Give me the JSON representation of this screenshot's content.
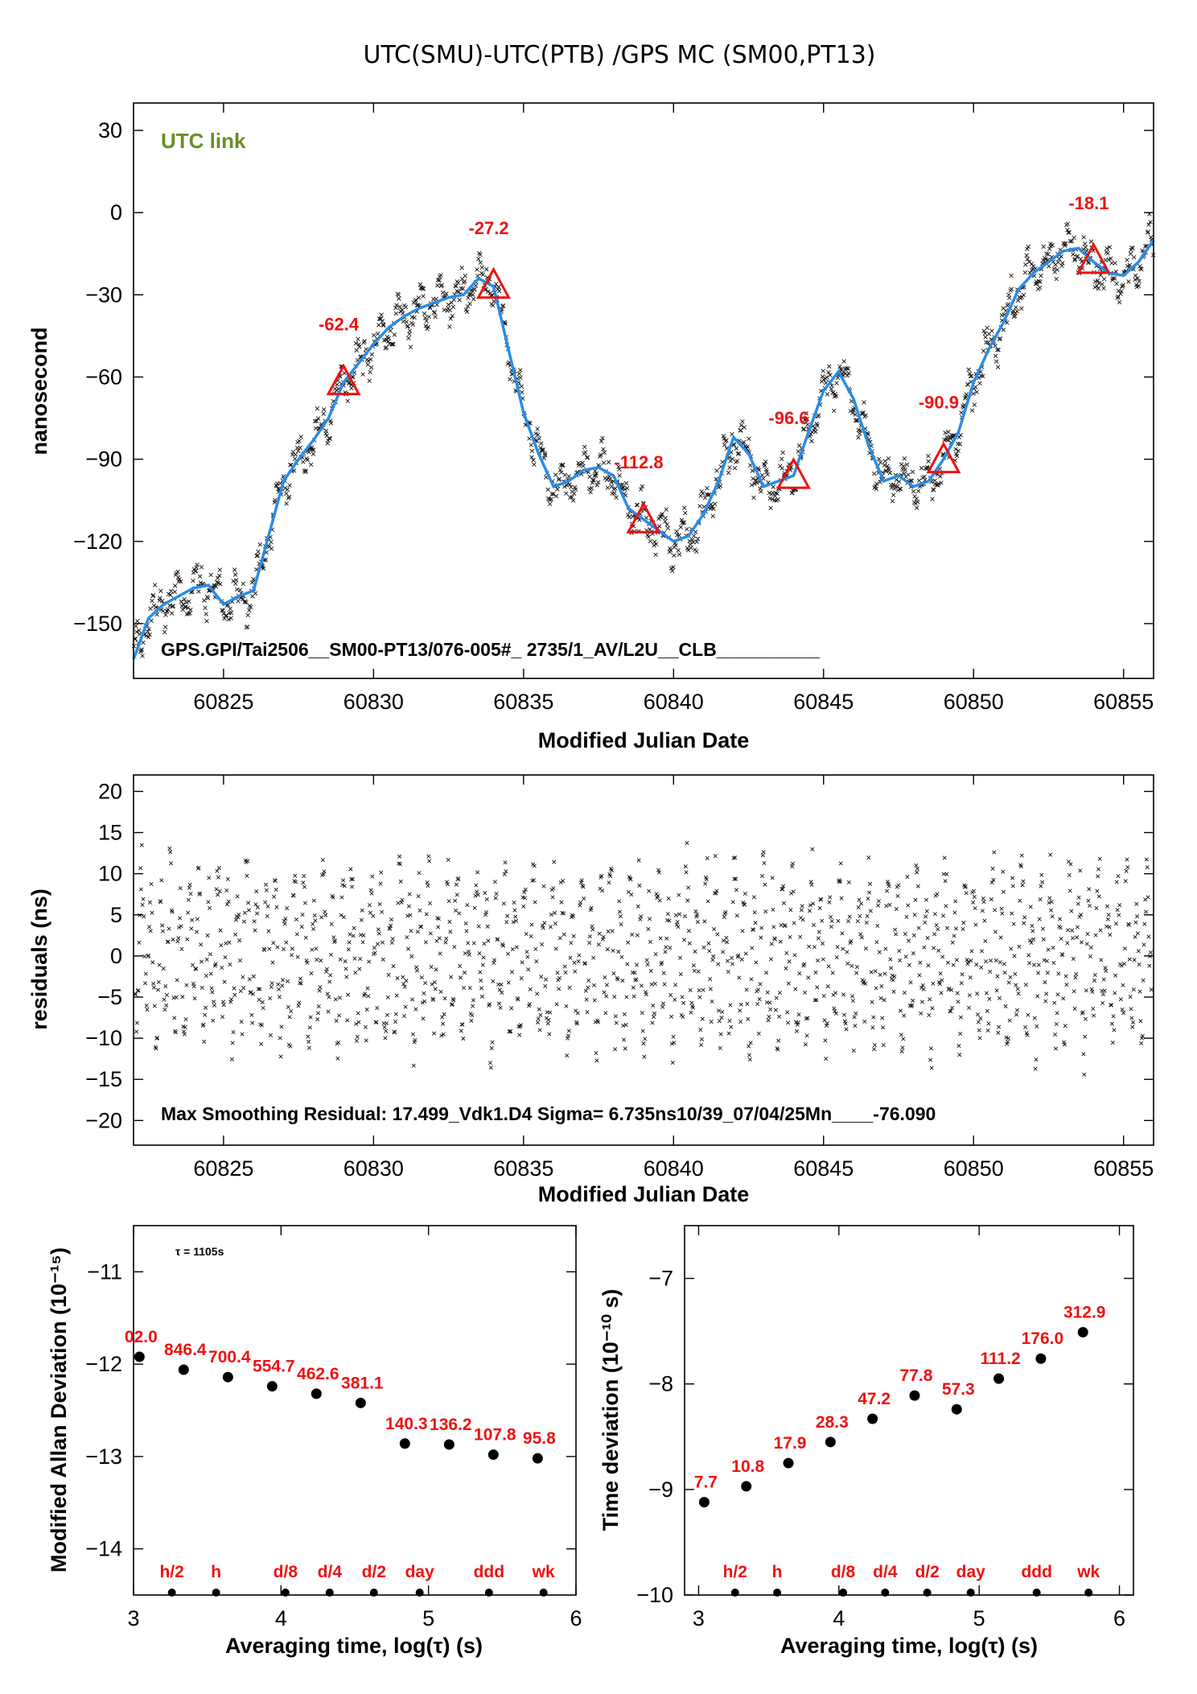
{
  "title": "UTC(SMU)-UTC(PTB)  /GPS  MC  (SM00,PT13)",
  "colors": {
    "fit_line": "#2b8ce6",
    "markers": "#ee1111",
    "link_label": "#6b8e23",
    "points": "#111111"
  },
  "chart_data": [
    {
      "name": "main",
      "type": "scatter",
      "xlabel": "Modified Julian Date",
      "ylabel": "nanosecond",
      "xlim": [
        60822,
        60856
      ],
      "ylim": [
        -170,
        40
      ],
      "xticks": [
        60825,
        60830,
        60835,
        60840,
        60845,
        60850,
        60855
      ],
      "yticks": [
        30,
        0,
        -30,
        -60,
        -90,
        -120,
        -150
      ],
      "annotation_link": "UTC link",
      "annotation_file": "GPS.GPI/Tai2506__SM00-PT13/076-005#_  2735/1_AV/L2U__CLB__________",
      "smooth_line": {
        "x": [
          60822,
          60822.5,
          60823,
          60823.5,
          60824,
          60824.5,
          60825,
          60825.5,
          60826,
          60826.5,
          60827,
          60827.5,
          60828,
          60828.5,
          60829,
          60829.5,
          60830,
          60830.5,
          60831,
          60831.5,
          60832,
          60832.5,
          60833,
          60833.5,
          60834,
          60834.5,
          60835,
          60835.5,
          60836,
          60836.5,
          60837,
          60837.5,
          60838,
          60838.5,
          60839,
          60839.5,
          60840,
          60840.5,
          60841,
          60841.5,
          60842,
          60842.5,
          60843,
          60843.5,
          60844,
          60844.5,
          60845,
          60845.5,
          60846,
          60846.5,
          60847,
          60847.5,
          60848,
          60848.5,
          60849,
          60849.5,
          60850,
          60850.5,
          60851,
          60851.5,
          60852,
          60852.5,
          60853,
          60853.5,
          60854,
          60854.5,
          60855,
          60855.5,
          60856
        ],
        "y": [
          -163,
          -148,
          -143,
          -140,
          -137,
          -136,
          -143,
          -140,
          -138,
          -118,
          -98,
          -90,
          -83,
          -75,
          -62,
          -55,
          -48,
          -42,
          -38,
          -35,
          -33,
          -31,
          -30,
          -24,
          -27,
          -50,
          -73,
          -88,
          -100,
          -98,
          -94,
          -93,
          -96,
          -108,
          -112,
          -116,
          -120,
          -118,
          -110,
          -98,
          -82,
          -88,
          -100,
          -98,
          -96,
          -80,
          -65,
          -58,
          -68,
          -85,
          -98,
          -96,
          -100,
          -98,
          -90,
          -80,
          -62,
          -50,
          -40,
          -28,
          -22,
          -18,
          -14,
          -13,
          -18,
          -22,
          -23,
          -18,
          -10
        ]
      },
      "markers": [
        {
          "x": 60829,
          "y": -62.4,
          "label": "-62.4"
        },
        {
          "x": 60834,
          "y": -27.2,
          "label": "-27.2"
        },
        {
          "x": 60839,
          "y": -112.8,
          "label": "-112.8"
        },
        {
          "x": 60844,
          "y": -96.6,
          "label": "-96.6"
        },
        {
          "x": 60849,
          "y": -90.9,
          "label": "-90.9"
        },
        {
          "x": 60854,
          "y": -18.1,
          "label": "-18.1"
        }
      ]
    },
    {
      "name": "residuals",
      "type": "scatter",
      "xlabel": "Modified Julian Date",
      "ylabel": "residuals (ns)",
      "xlim": [
        60822,
        60856
      ],
      "ylim": [
        -23,
        22
      ],
      "xticks": [
        60825,
        60830,
        60835,
        60840,
        60845,
        60850,
        60855
      ],
      "yticks": [
        20,
        15,
        10,
        5,
        0,
        -5,
        -10,
        -15,
        -20
      ],
      "annotation": "Max Smoothing Residual: 17.499_Vdk1.D4  Sigma= 6.735ns10/39_07/04/25Mn____-76.090"
    },
    {
      "name": "mdev",
      "type": "scatter",
      "xlabel": "Averaging time, log(τ) (s)",
      "ylabel": "Modified Allan Deviation (10⁻¹⁵)",
      "xlim": [
        3,
        6
      ],
      "ylim": [
        -14.5,
        -10.5
      ],
      "xticks": [
        3,
        4,
        5,
        6
      ],
      "yticks": [
        -11,
        -12,
        -13,
        -14
      ],
      "tau_label": "τ = 1105s",
      "points": [
        {
          "x": 3.04,
          "y": -11.92,
          "label": "02.0"
        },
        {
          "x": 3.34,
          "y": -12.06,
          "label": "846.4"
        },
        {
          "x": 3.64,
          "y": -12.14,
          "label": "700.4"
        },
        {
          "x": 3.94,
          "y": -12.24,
          "label": "554.7"
        },
        {
          "x": 4.24,
          "y": -12.32,
          "label": "462.6"
        },
        {
          "x": 4.54,
          "y": -12.42,
          "label": "381.1"
        },
        {
          "x": 4.84,
          "y": -12.86,
          "label": "140.3"
        },
        {
          "x": 5.14,
          "y": -12.87,
          "label": "136.2"
        },
        {
          "x": 5.44,
          "y": -12.98,
          "label": "107.8"
        },
        {
          "x": 5.74,
          "y": -13.02,
          "label": "95.8"
        }
      ],
      "markers": [
        {
          "x": 3.26,
          "label": "h/2"
        },
        {
          "x": 3.56,
          "label": "h"
        },
        {
          "x": 4.03,
          "label": "d/8"
        },
        {
          "x": 4.33,
          "label": "d/4"
        },
        {
          "x": 4.63,
          "label": "d/2"
        },
        {
          "x": 4.94,
          "label": "day"
        },
        {
          "x": 5.41,
          "label": "ddd"
        },
        {
          "x": 5.78,
          "label": "wk"
        }
      ]
    },
    {
      "name": "tdev",
      "type": "scatter",
      "xlabel": "Averaging time, log(τ) (s)",
      "ylabel": "Time deviation (10⁻¹⁰ s)",
      "xlim": [
        2.9,
        6.1
      ],
      "ylim": [
        -10,
        -6.5
      ],
      "xticks": [
        3,
        4,
        5,
        6
      ],
      "yticks": [
        -7,
        -8,
        -9,
        -10
      ],
      "points": [
        {
          "x": 3.04,
          "y": -9.12,
          "label": "7.7"
        },
        {
          "x": 3.34,
          "y": -8.97,
          "label": "10.8"
        },
        {
          "x": 3.64,
          "y": -8.75,
          "label": "17.9"
        },
        {
          "x": 3.94,
          "y": -8.55,
          "label": "28.3"
        },
        {
          "x": 4.24,
          "y": -8.33,
          "label": "47.2"
        },
        {
          "x": 4.54,
          "y": -8.11,
          "label": "77.8"
        },
        {
          "x": 4.84,
          "y": -8.24,
          "label": "57.3"
        },
        {
          "x": 5.14,
          "y": -7.95,
          "label": "111.2"
        },
        {
          "x": 5.44,
          "y": -7.76,
          "label": "176.0"
        },
        {
          "x": 5.74,
          "y": -7.51,
          "label": "312.9"
        }
      ],
      "markers": [
        {
          "x": 3.26,
          "label": "h/2"
        },
        {
          "x": 3.56,
          "label": "h"
        },
        {
          "x": 4.03,
          "label": "d/8"
        },
        {
          "x": 4.33,
          "label": "d/4"
        },
        {
          "x": 4.63,
          "label": "d/2"
        },
        {
          "x": 4.94,
          "label": "day"
        },
        {
          "x": 5.41,
          "label": "ddd"
        },
        {
          "x": 5.78,
          "label": "wk"
        }
      ]
    }
  ]
}
